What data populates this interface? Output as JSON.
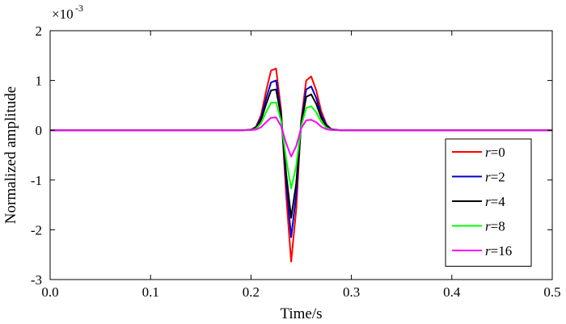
{
  "chart_data": {
    "type": "line",
    "title": "",
    "xlabel": "Time/s",
    "ylabel": "Normalized amplitude",
    "y_multiplier_label": "×10",
    "y_multiplier_exponent": "-3",
    "xlim": [
      0,
      0.5
    ],
    "ylim": [
      -3,
      2
    ],
    "x_ticks": [
      0,
      0.1,
      0.2,
      0.3,
      0.4,
      0.5
    ],
    "x_tick_labels": [
      "0.0",
      "0.1",
      "0.2",
      "0.3",
      "0.4",
      "0.5"
    ],
    "y_ticks": [
      -3,
      -2,
      -1,
      0,
      1,
      2
    ],
    "y_tick_labels": [
      "-3",
      "-2",
      "-1",
      "0",
      "1",
      "2"
    ],
    "grid": false,
    "legend_position": "lower-right",
    "x": [
      0.0,
      0.19,
      0.2,
      0.205,
      0.21,
      0.215,
      0.22,
      0.225,
      0.23,
      0.235,
      0.24,
      0.245,
      0.25,
      0.255,
      0.26,
      0.265,
      0.27,
      0.275,
      0.28,
      0.29,
      0.3,
      0.5
    ],
    "series": [
      {
        "name": "r=0",
        "label_var": "r",
        "label_val": "=0",
        "color": "#ff0000",
        "values": [
          0,
          0,
          0.01,
          0.07,
          0.3,
          0.78,
          1.2,
          1.24,
          0.4,
          -1.3,
          -2.64,
          -1.6,
          0.2,
          1.0,
          1.08,
          0.8,
          0.38,
          0.12,
          0.02,
          0,
          0,
          0
        ]
      },
      {
        "name": "r=2",
        "label_var": "r",
        "label_val": "=2",
        "color": "#0000cc",
        "values": [
          0,
          0,
          0.01,
          0.06,
          0.25,
          0.63,
          0.96,
          1.0,
          0.32,
          -1.05,
          -2.15,
          -1.3,
          0.15,
          0.82,
          0.88,
          0.65,
          0.31,
          0.1,
          0.02,
          0,
          0,
          0
        ]
      },
      {
        "name": "r=4",
        "label_var": "r",
        "label_val": "=4",
        "color": "#000000",
        "values": [
          0,
          0,
          0.01,
          0.05,
          0.2,
          0.52,
          0.8,
          0.82,
          0.27,
          -0.87,
          -1.76,
          -1.07,
          0.12,
          0.67,
          0.72,
          0.53,
          0.25,
          0.08,
          0.01,
          0,
          0,
          0
        ]
      },
      {
        "name": "r=8",
        "label_var": "r",
        "label_val": "=8",
        "color": "#00ff00",
        "values": [
          0,
          0,
          0.005,
          0.03,
          0.14,
          0.36,
          0.55,
          0.56,
          0.18,
          -0.58,
          -1.17,
          -0.72,
          0.08,
          0.45,
          0.48,
          0.36,
          0.17,
          0.05,
          0.01,
          0,
          0,
          0
        ]
      },
      {
        "name": "r=16",
        "label_var": "r",
        "label_val": "=16",
        "color": "#ff00ff",
        "values": [
          0,
          0,
          0.003,
          0.015,
          0.06,
          0.16,
          0.25,
          0.26,
          0.08,
          -0.26,
          -0.53,
          -0.32,
          0.04,
          0.2,
          0.21,
          0.16,
          0.07,
          0.02,
          0.005,
          0,
          0,
          0
        ]
      }
    ]
  }
}
